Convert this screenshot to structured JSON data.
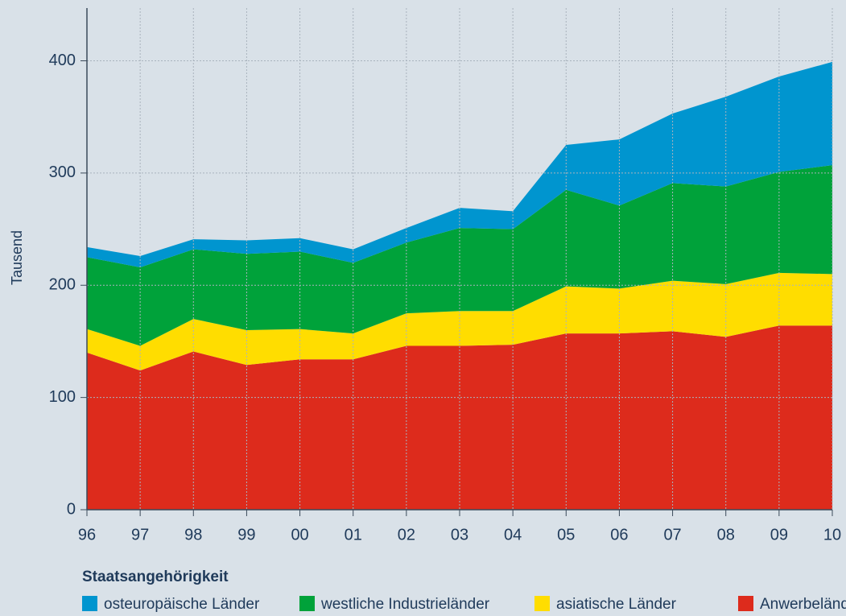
{
  "chart_data": {
    "type": "stacked_area",
    "y_label": "Tausend",
    "categories": [
      "96",
      "97",
      "98",
      "99",
      "00",
      "01",
      "02",
      "03",
      "04",
      "05",
      "06",
      "07",
      "08",
      "09",
      "10"
    ],
    "series": [
      {
        "name": "osteuropäische Länder",
        "color": "#0095cf",
        "values": [
          9,
          10,
          9,
          12,
          12,
          12,
          13,
          18,
          16,
          40,
          59,
          62,
          80,
          85,
          92
        ]
      },
      {
        "name": "westliche Industrieländer",
        "color": "#00a23a",
        "values": [
          64,
          70,
          62,
          68,
          69,
          63,
          63,
          74,
          73,
          86,
          74,
          87,
          87,
          90,
          97
        ]
      },
      {
        "name": "asiatische Länder",
        "color": "#ffdd00",
        "values": [
          21,
          22,
          29,
          31,
          27,
          23,
          29,
          31,
          30,
          42,
          40,
          45,
          47,
          47,
          46
        ]
      },
      {
        "name": "Anwerbeländer",
        "color": "#dd2b1c",
        "values": [
          140,
          124,
          141,
          129,
          134,
          134,
          146,
          146,
          147,
          157,
          157,
          159,
          154,
          164,
          164
        ]
      }
    ],
    "legend_title": "Staatsangehörigkeit",
    "ylim": [
      0,
      447
    ],
    "yticks": [
      0,
      100,
      200,
      300,
      400
    ],
    "grid": true
  }
}
